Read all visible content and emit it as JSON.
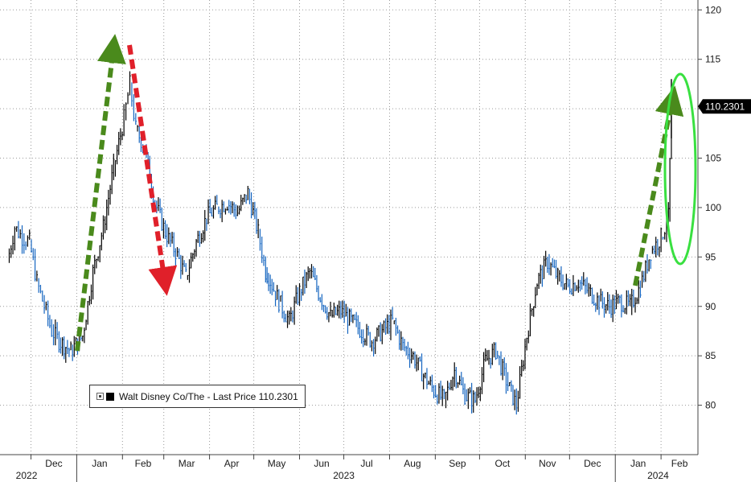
{
  "chart_data": {
    "type": "line",
    "title": "",
    "xlabel": "",
    "ylabel": "",
    "ylim": [
      75,
      121
    ],
    "y_ticks": [
      80,
      85,
      90,
      95,
      100,
      105,
      110,
      115,
      120
    ],
    "x_month_labels": [
      "Dec",
      "Jan",
      "Feb",
      "Mar",
      "Apr",
      "May",
      "Jun",
      "Jul",
      "Aug",
      "Sep",
      "Oct",
      "Nov",
      "Dec",
      "Jan",
      "Feb"
    ],
    "x_year_labels": [
      "2022",
      "2023",
      "2024"
    ],
    "grid": true,
    "legend": "bottom-left",
    "series": [
      {
        "name": "Walt Disney Co/The - Last Price",
        "color": "#000000",
        "down_color": "#1565c0",
        "x": [
          "2022-11-15",
          "2022-11-20",
          "2022-11-25",
          "2022-11-30",
          "2022-12-05",
          "2022-12-10",
          "2022-12-15",
          "2022-12-20",
          "2022-12-28",
          "2023-01-05",
          "2023-01-12",
          "2023-01-19",
          "2023-01-26",
          "2023-02-02",
          "2023-02-06",
          "2023-02-10",
          "2023-02-16",
          "2023-02-23",
          "2023-03-02",
          "2023-03-09",
          "2023-03-16",
          "2023-03-23",
          "2023-03-30",
          "2023-04-06",
          "2023-04-13",
          "2023-04-20",
          "2023-04-27",
          "2023-05-04",
          "2023-05-09",
          "2023-05-11",
          "2023-05-18",
          "2023-05-25",
          "2023-06-01",
          "2023-06-08",
          "2023-06-15",
          "2023-06-22",
          "2023-06-29",
          "2023-07-06",
          "2023-07-13",
          "2023-07-20",
          "2023-07-27",
          "2023-08-03",
          "2023-08-10",
          "2023-08-17",
          "2023-08-24",
          "2023-08-31",
          "2023-09-07",
          "2023-09-14",
          "2023-09-21",
          "2023-09-28",
          "2023-10-05",
          "2023-10-12",
          "2023-10-19",
          "2023-10-26",
          "2023-11-02",
          "2023-11-09",
          "2023-11-16",
          "2023-11-23",
          "2023-11-30",
          "2023-12-07",
          "2023-12-14",
          "2023-12-21",
          "2023-12-28",
          "2024-01-04",
          "2024-01-11",
          "2024-01-18",
          "2024-01-25",
          "2024-02-01",
          "2024-02-06",
          "2024-02-08"
        ],
        "values": [
          94.5,
          98.0,
          97.0,
          96.5,
          92.5,
          90.0,
          87.5,
          86.5,
          85.5,
          87.0,
          93.5,
          98.0,
          104.0,
          109.0,
          112.5,
          108.0,
          106.0,
          100.5,
          97.5,
          95.5,
          93.0,
          96.5,
          99.0,
          100.0,
          100.5,
          99.5,
          101.5,
          97.5,
          93.5,
          93.0,
          90.5,
          88.5,
          91.5,
          93.5,
          91.0,
          89.0,
          89.5,
          88.5,
          87.5,
          86.5,
          87.5,
          88.5,
          86.0,
          85.0,
          83.0,
          81.5,
          80.5,
          83.5,
          81.0,
          80.5,
          84.5,
          85.5,
          82.5,
          80.0,
          87.0,
          92.5,
          94.5,
          93.0,
          92.0,
          92.5,
          91.5,
          90.5,
          90.0,
          90.5,
          90.0,
          92.0,
          95.5,
          97.0,
          99.0,
          110.2301
        ]
      }
    ],
    "last_price_label": "110.2301",
    "annotations": [
      "green-dashed-arrow-up-2022",
      "red-dashed-arrow-down-2023",
      "green-dashed-arrow-up-2024",
      "green-ellipse-2024"
    ]
  },
  "legend": {
    "series_label": "Walt Disney Co/The - Last Price 110.2301"
  }
}
